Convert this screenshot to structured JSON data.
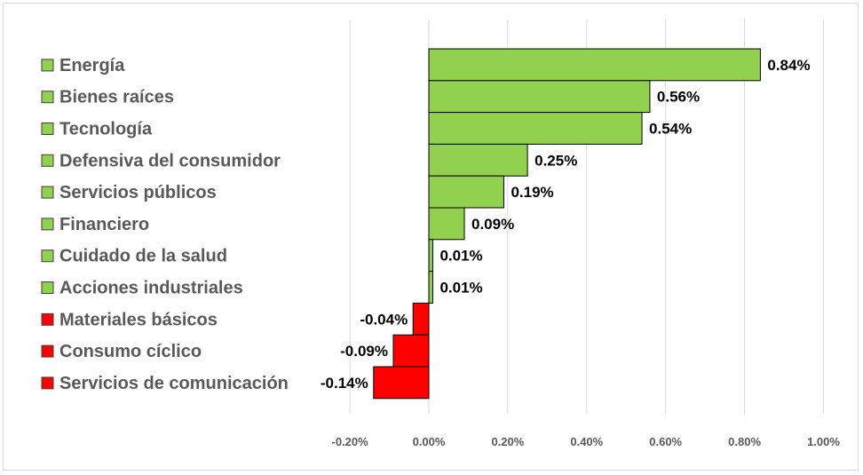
{
  "chart_data": {
    "type": "bar",
    "orientation": "horizontal",
    "categories": [
      "Energía",
      "Bienes raíces",
      "Tecnología",
      "Defensiva del consumidor",
      "Servicios públicos",
      "Financiero",
      "Cuidado de la salud",
      "Acciones industriales",
      "Materiales básicos",
      "Consumo cíclico",
      "Servicios de comunicación"
    ],
    "values": [
      0.84,
      0.56,
      0.54,
      0.25,
      0.19,
      0.09,
      0.01,
      0.01,
      -0.04,
      -0.09,
      -0.14
    ],
    "value_labels": [
      "0.84%",
      "0.56%",
      "0.54%",
      "0.25%",
      "0.19%",
      "0.09%",
      "0.01%",
      "0.01%",
      "-0.04%",
      "-0.09%",
      "-0.14%"
    ],
    "x_ticks": [
      "-0.20%",
      "0.00%",
      "0.20%",
      "0.40%",
      "0.60%",
      "0.80%",
      "1.00%"
    ],
    "xlim": [
      -0.2,
      1.0
    ],
    "unit": "%",
    "colors": {
      "positive": "#92d050",
      "negative": "#ff0000",
      "grid": "#d9d9d9",
      "bar_border": "#000000"
    },
    "legend_position": "left",
    "grid": true,
    "title": "",
    "xlabel": "",
    "ylabel": ""
  }
}
